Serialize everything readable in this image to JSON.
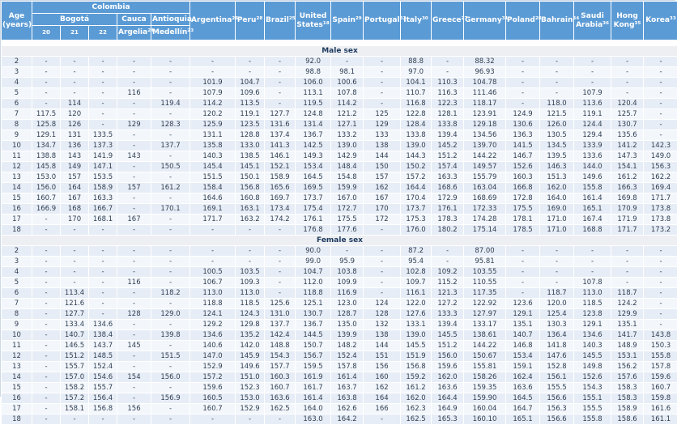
{
  "header": {
    "age_label": "Age\n(years)",
    "colombia_label": "Colombia",
    "bogota_label": "Bogotá",
    "cauca_label": "Cauca",
    "antioquia_label": "Antioquia",
    "subcolumns": [
      "20",
      "21",
      "22",
      "Argelia²⁴",
      "Medellín²³"
    ],
    "countries": [
      "Argentina²⁶",
      "Peru²⁸",
      "Brazil²⁵",
      "United States¹⁸",
      "Spain²⁹",
      "Portugal³²",
      "Italy³⁰",
      "Greece²⁷",
      "Germany³¹",
      "Poland²⁸",
      "Bahrain³⁴",
      "Saudi Arabia³⁶",
      "Hong Kong³⁵",
      "Korea³³"
    ]
  },
  "colors": {
    "header_bg": "#5b9bd5",
    "row_dark": "#e7edf6",
    "row_light": "#f3f7fb",
    "band_bg": "#edeff2",
    "text": "#2e3d52"
  },
  "sections": [
    {
      "label": "Male sex",
      "rows": [
        {
          "age": "2",
          "values": [
            "-",
            "-",
            "-",
            "-",
            "-",
            "-",
            "-",
            "-",
            "92.0",
            "-",
            "-",
            "88.8",
            "-",
            "88.32",
            "-",
            "-",
            "-",
            "-",
            "-"
          ]
        },
        {
          "age": "3",
          "values": [
            "-",
            "-",
            "-",
            "-",
            "-",
            "-",
            "-",
            "-",
            "98.8",
            "98.1",
            "-",
            "97.0",
            "-",
            "96.93",
            "-",
            "-",
            "-",
            "-",
            "-"
          ]
        },
        {
          "age": "4",
          "values": [
            "-",
            "-",
            "-",
            "-",
            "-",
            "101.9",
            "104.7",
            "-",
            "106.0",
            "100.6",
            "-",
            "104.1",
            "110.3",
            "104.78",
            "-",
            "-",
            "-",
            "-",
            "-"
          ]
        },
        {
          "age": "5",
          "values": [
            "-",
            "-",
            "-",
            "116",
            "-",
            "107.9",
            "109.6",
            "-",
            "113.1",
            "107.8",
            "-",
            "110.7",
            "116.3",
            "111.46",
            "-",
            "-",
            "107.9",
            "-",
            "-"
          ]
        },
        {
          "age": "6",
          "values": [
            "-",
            "114",
            "-",
            "-",
            "119.4",
            "114.2",
            "113.5",
            "-",
            "119.5",
            "114.2",
            "-",
            "116.8",
            "122.3",
            "118.17",
            "-",
            "118.0",
            "113.6",
            "120.4",
            "-"
          ]
        },
        {
          "age": "7",
          "values": [
            "117.5",
            "120",
            "-",
            "-",
            "-",
            "120.2",
            "119.1",
            "127.7",
            "124.8",
            "121.2",
            "125",
            "122.8",
            "128.1",
            "123.91",
            "124.9",
            "121.5",
            "119.1",
            "125.7",
            "-"
          ]
        },
        {
          "age": "8",
          "values": [
            "125.8",
            "126",
            "-",
            "129",
            "128.3",
            "125.9",
            "123.5",
            "131.6",
            "131.4",
            "127.1",
            "129",
            "128.4",
            "133.8",
            "129.18",
            "130.6",
            "126.0",
            "124.4",
            "130.7",
            "-"
          ]
        },
        {
          "age": "9",
          "values": [
            "129.1",
            "131",
            "133.5",
            "-",
            "-",
            "131.1",
            "128.8",
            "137.4",
            "136.7",
            "133.2",
            "133",
            "133.8",
            "139.4",
            "134.56",
            "136.3",
            "130.5",
            "129.4",
            "135.6",
            "-"
          ]
        },
        {
          "age": "10",
          "values": [
            "134.7",
            "136",
            "137.3",
            "-",
            "137.7",
            "135.8",
            "133.0",
            "141.3",
            "142.5",
            "139.0",
            "138",
            "139.0",
            "145.2",
            "139.70",
            "141.5",
            "134.5",
            "133.9",
            "141.2",
            "142.3"
          ]
        },
        {
          "age": "11",
          "values": [
            "138.8",
            "143",
            "141.9",
            "143",
            "-",
            "140.3",
            "138.5",
            "146.1",
            "149.3",
            "142.9",
            "144",
            "144.3",
            "151.2",
            "144.22",
            "146.7",
            "139.5",
            "133.6",
            "147.3",
            "149.0"
          ]
        },
        {
          "age": "12",
          "values": [
            "145.8",
            "149",
            "147.1",
            "-",
            "150.5",
            "145.4",
            "145.1",
            "152.1",
            "153.4",
            "148.4",
            "150",
            "150.2",
            "157.4",
            "149.57",
            "152.6",
            "146.3",
            "144.0",
            "154.1",
            "156.3"
          ]
        },
        {
          "age": "13",
          "values": [
            "153.0",
            "157",
            "153.5",
            "-",
            "-",
            "151.5",
            "150.1",
            "158.9",
            "164.5",
            "154.8",
            "157",
            "157.2",
            "163.3",
            "155.79",
            "160.3",
            "151.3",
            "149.6",
            "161.2",
            "162.2"
          ]
        },
        {
          "age": "14",
          "values": [
            "156.0",
            "164",
            "158.9",
            "157",
            "161.2",
            "158.4",
            "156.8",
            "165.6",
            "169.5",
            "159.9",
            "162",
            "164.4",
            "168.6",
            "163.04",
            "166.8",
            "162.0",
            "155.8",
            "166.3",
            "169.4"
          ]
        },
        {
          "age": "15",
          "values": [
            "160.7",
            "167",
            "163.3",
            "-",
            "-",
            "164.6",
            "160.8",
            "169.7",
            "173.7",
            "167.0",
            "167",
            "170.4",
            "172.9",
            "168.69",
            "172.8",
            "164.0",
            "161.4",
            "169.8",
            "171.7"
          ]
        },
        {
          "age": "16",
          "values": [
            "166.9",
            "168",
            "166.7",
            "-",
            "170.1",
            "169.1",
            "163.1",
            "173.4",
            "175.4",
            "172.7",
            "170",
            "173.7",
            "176.1",
            "172.33",
            "175.5",
            "169.0",
            "165.1",
            "170.9",
            "173.8"
          ]
        },
        {
          "age": "17",
          "values": [
            "-",
            "170",
            "168.1",
            "167",
            "-",
            "171.7",
            "163.2",
            "174.2",
            "176.1",
            "175.5",
            "172",
            "175.3",
            "178.3",
            "174.28",
            "178.1",
            "171.0",
            "167.4",
            "171.9",
            "173.8"
          ]
        },
        {
          "age": "18",
          "values": [
            "-",
            "-",
            "-",
            "-",
            "-",
            "-",
            "-",
            "-",
            "176.8",
            "177.6",
            "-",
            "176.0",
            "180.2",
            "175.14",
            "178.5",
            "171.0",
            "168.8",
            "171.7",
            "173.2"
          ]
        }
      ]
    },
    {
      "label": "Female sex",
      "rows": [
        {
          "age": "2",
          "values": [
            "-",
            "-",
            "-",
            "-",
            "-",
            "-",
            "-",
            "-",
            "90.0",
            "-",
            "-",
            "87.2",
            "-",
            "87.00",
            "-",
            "-",
            "-",
            "-",
            "-"
          ]
        },
        {
          "age": "3",
          "values": [
            "-",
            "-",
            "-",
            "-",
            "-",
            "-",
            "-",
            "-",
            "99.0",
            "95.9",
            "-",
            "95.4",
            "-",
            "95.81",
            "-",
            "-",
            "-",
            "-",
            "-"
          ]
        },
        {
          "age": "4",
          "values": [
            "-",
            "-",
            "-",
            "-",
            "-",
            "100.5",
            "103.5",
            "-",
            "104.7",
            "103.8",
            "-",
            "102.8",
            "109.2",
            "103.55",
            "-",
            "-",
            "-",
            "-",
            "-"
          ]
        },
        {
          "age": "5",
          "values": [
            "-",
            "-",
            "-",
            "116",
            "-",
            "106.7",
            "109.3",
            "-",
            "112.0",
            "109.9",
            "-",
            "109.7",
            "115.2",
            "110.55",
            "-",
            "-",
            "107.8",
            "-",
            "-"
          ]
        },
        {
          "age": "6",
          "values": [
            "-",
            "113.4",
            "-",
            "-",
            "118.2",
            "113.0",
            "113.0",
            "-",
            "118.8",
            "116.9",
            "-",
            "116.1",
            "121.3",
            "117.35",
            "-",
            "118.7",
            "113.0",
            "118.7",
            "-"
          ]
        },
        {
          "age": "7",
          "values": [
            "-",
            "121.6",
            "-",
            "-",
            "-",
            "118.8",
            "118.5",
            "125.6",
            "125.1",
            "123.0",
            "124",
            "122.0",
            "127.2",
            "122.92",
            "123.6",
            "120.0",
            "118.5",
            "124.2",
            "-"
          ]
        },
        {
          "age": "8",
          "values": [
            "-",
            "127.7",
            "-",
            "128",
            "129.0",
            "124.1",
            "124.3",
            "131.0",
            "130.7",
            "128.7",
            "128",
            "127.6",
            "133.3",
            "127.97",
            "129.1",
            "125.4",
            "123.8",
            "129.9",
            "-"
          ]
        },
        {
          "age": "9",
          "values": [
            "-",
            "133.4",
            "134.6",
            "-",
            "-",
            "129.2",
            "129.8",
            "137.7",
            "136.7",
            "135.0",
            "132",
            "133.1",
            "139.4",
            "133.17",
            "135.1",
            "130.3",
            "129.1",
            "135.1",
            "-"
          ]
        },
        {
          "age": "10",
          "values": [
            "-",
            "140.7",
            "138.4",
            "-",
            "139.8",
            "134.6",
            "135.2",
            "142.4",
            "144.5",
            "139.9",
            "138",
            "139.0",
            "145.5",
            "138.61",
            "140.7",
            "136.4",
            "134.6",
            "141.7",
            "143.8"
          ]
        },
        {
          "age": "11",
          "values": [
            "-",
            "146.5",
            "143.7",
            "145",
            "-",
            "140.6",
            "142.0",
            "148.8",
            "150.7",
            "148.2",
            "144",
            "145.5",
            "151.2",
            "144.22",
            "146.8",
            "141.8",
            "140.3",
            "148.9",
            "150.3"
          ]
        },
        {
          "age": "12",
          "values": [
            "-",
            "151.2",
            "148.5",
            "-",
            "151.5",
            "147.0",
            "145.9",
            "154.3",
            "156.7",
            "152.4",
            "151",
            "151.9",
            "156.0",
            "150.67",
            "153.4",
            "147.6",
            "145.5",
            "153.1",
            "155.8"
          ]
        },
        {
          "age": "13",
          "values": [
            "-",
            "155.7",
            "152.4",
            "-",
            "-",
            "152.9",
            "149.6",
            "157.7",
            "159.5",
            "157.8",
            "156",
            "156.8",
            "159.6",
            "155.81",
            "159.1",
            "152.8",
            "149.8",
            "156.2",
            "157.8"
          ]
        },
        {
          "age": "14",
          "values": [
            "-",
            "157.0",
            "154.6",
            "154",
            "156.0",
            "157.2",
            "151.0",
            "160.3",
            "161.9",
            "161.4",
            "160",
            "159.2",
            "162.0",
            "158.26",
            "162.4",
            "156.1",
            "152.6",
            "157.6",
            "159.6"
          ]
        },
        {
          "age": "15",
          "values": [
            "-",
            "158.2",
            "155.7",
            "-",
            "-",
            "159.6",
            "152.3",
            "160.7",
            "161.7",
            "163.7",
            "162",
            "161.2",
            "163.6",
            "159.35",
            "163.6",
            "155.5",
            "154.3",
            "158.3",
            "160.7"
          ]
        },
        {
          "age": "16",
          "values": [
            "-",
            "157.2",
            "156.4",
            "-",
            "156.9",
            "160.5",
            "153.0",
            "163.6",
            "161.4",
            "163.8",
            "164",
            "162.0",
            "164.4",
            "159.90",
            "164.5",
            "156.6",
            "155.1",
            "158.3",
            "159.8"
          ]
        },
        {
          "age": "17",
          "values": [
            "-",
            "158.1",
            "156.8",
            "156",
            "-",
            "160.7",
            "152.9",
            "162.5",
            "164.0",
            "162.6",
            "166",
            "162.3",
            "164.9",
            "160.04",
            "164.7",
            "156.3",
            "155.5",
            "158.9",
            "161.6"
          ]
        },
        {
          "age": "18",
          "values": [
            "-",
            "-",
            "-",
            "-",
            "-",
            "-",
            "-",
            "-",
            "163.0",
            "164.2",
            "-",
            "162.5",
            "165.3",
            "160.10",
            "165.1",
            "156.6",
            "155.8",
            "158.6",
            "161.1"
          ]
        }
      ]
    }
  ]
}
